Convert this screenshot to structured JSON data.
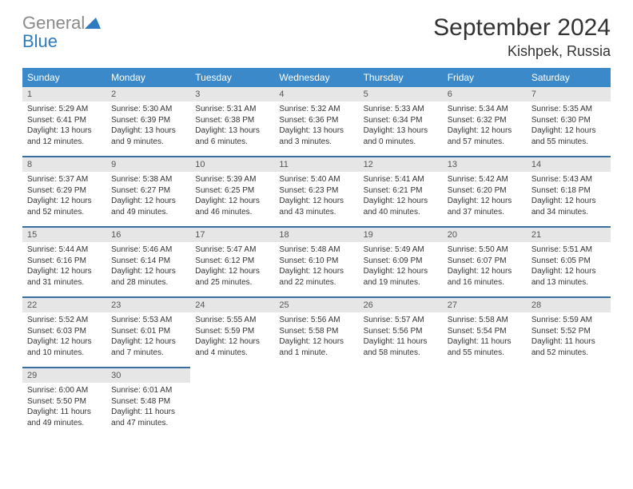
{
  "logo": {
    "word1": "General",
    "word2": "Blue"
  },
  "header": {
    "title": "September 2024",
    "location": "Kishpek, Russia"
  },
  "colors": {
    "header_bg": "#3b89c9",
    "header_text": "#ffffff",
    "row_border": "#3b6ea0",
    "daynum_bg": "#e6e6e6",
    "logo_gray": "#8a8a8a",
    "logo_blue": "#2d7bc0"
  },
  "weekdays": [
    "Sunday",
    "Monday",
    "Tuesday",
    "Wednesday",
    "Thursday",
    "Friday",
    "Saturday"
  ],
  "weeks": [
    [
      {
        "n": "1",
        "sr": "Sunrise: 5:29 AM",
        "ss": "Sunset: 6:41 PM",
        "d1": "Daylight: 13 hours",
        "d2": "and 12 minutes."
      },
      {
        "n": "2",
        "sr": "Sunrise: 5:30 AM",
        "ss": "Sunset: 6:39 PM",
        "d1": "Daylight: 13 hours",
        "d2": "and 9 minutes."
      },
      {
        "n": "3",
        "sr": "Sunrise: 5:31 AM",
        "ss": "Sunset: 6:38 PM",
        "d1": "Daylight: 13 hours",
        "d2": "and 6 minutes."
      },
      {
        "n": "4",
        "sr": "Sunrise: 5:32 AM",
        "ss": "Sunset: 6:36 PM",
        "d1": "Daylight: 13 hours",
        "d2": "and 3 minutes."
      },
      {
        "n": "5",
        "sr": "Sunrise: 5:33 AM",
        "ss": "Sunset: 6:34 PM",
        "d1": "Daylight: 13 hours",
        "d2": "and 0 minutes."
      },
      {
        "n": "6",
        "sr": "Sunrise: 5:34 AM",
        "ss": "Sunset: 6:32 PM",
        "d1": "Daylight: 12 hours",
        "d2": "and 57 minutes."
      },
      {
        "n": "7",
        "sr": "Sunrise: 5:35 AM",
        "ss": "Sunset: 6:30 PM",
        "d1": "Daylight: 12 hours",
        "d2": "and 55 minutes."
      }
    ],
    [
      {
        "n": "8",
        "sr": "Sunrise: 5:37 AM",
        "ss": "Sunset: 6:29 PM",
        "d1": "Daylight: 12 hours",
        "d2": "and 52 minutes."
      },
      {
        "n": "9",
        "sr": "Sunrise: 5:38 AM",
        "ss": "Sunset: 6:27 PM",
        "d1": "Daylight: 12 hours",
        "d2": "and 49 minutes."
      },
      {
        "n": "10",
        "sr": "Sunrise: 5:39 AM",
        "ss": "Sunset: 6:25 PM",
        "d1": "Daylight: 12 hours",
        "d2": "and 46 minutes."
      },
      {
        "n": "11",
        "sr": "Sunrise: 5:40 AM",
        "ss": "Sunset: 6:23 PM",
        "d1": "Daylight: 12 hours",
        "d2": "and 43 minutes."
      },
      {
        "n": "12",
        "sr": "Sunrise: 5:41 AM",
        "ss": "Sunset: 6:21 PM",
        "d1": "Daylight: 12 hours",
        "d2": "and 40 minutes."
      },
      {
        "n": "13",
        "sr": "Sunrise: 5:42 AM",
        "ss": "Sunset: 6:20 PM",
        "d1": "Daylight: 12 hours",
        "d2": "and 37 minutes."
      },
      {
        "n": "14",
        "sr": "Sunrise: 5:43 AM",
        "ss": "Sunset: 6:18 PM",
        "d1": "Daylight: 12 hours",
        "d2": "and 34 minutes."
      }
    ],
    [
      {
        "n": "15",
        "sr": "Sunrise: 5:44 AM",
        "ss": "Sunset: 6:16 PM",
        "d1": "Daylight: 12 hours",
        "d2": "and 31 minutes."
      },
      {
        "n": "16",
        "sr": "Sunrise: 5:46 AM",
        "ss": "Sunset: 6:14 PM",
        "d1": "Daylight: 12 hours",
        "d2": "and 28 minutes."
      },
      {
        "n": "17",
        "sr": "Sunrise: 5:47 AM",
        "ss": "Sunset: 6:12 PM",
        "d1": "Daylight: 12 hours",
        "d2": "and 25 minutes."
      },
      {
        "n": "18",
        "sr": "Sunrise: 5:48 AM",
        "ss": "Sunset: 6:10 PM",
        "d1": "Daylight: 12 hours",
        "d2": "and 22 minutes."
      },
      {
        "n": "19",
        "sr": "Sunrise: 5:49 AM",
        "ss": "Sunset: 6:09 PM",
        "d1": "Daylight: 12 hours",
        "d2": "and 19 minutes."
      },
      {
        "n": "20",
        "sr": "Sunrise: 5:50 AM",
        "ss": "Sunset: 6:07 PM",
        "d1": "Daylight: 12 hours",
        "d2": "and 16 minutes."
      },
      {
        "n": "21",
        "sr": "Sunrise: 5:51 AM",
        "ss": "Sunset: 6:05 PM",
        "d1": "Daylight: 12 hours",
        "d2": "and 13 minutes."
      }
    ],
    [
      {
        "n": "22",
        "sr": "Sunrise: 5:52 AM",
        "ss": "Sunset: 6:03 PM",
        "d1": "Daylight: 12 hours",
        "d2": "and 10 minutes."
      },
      {
        "n": "23",
        "sr": "Sunrise: 5:53 AM",
        "ss": "Sunset: 6:01 PM",
        "d1": "Daylight: 12 hours",
        "d2": "and 7 minutes."
      },
      {
        "n": "24",
        "sr": "Sunrise: 5:55 AM",
        "ss": "Sunset: 5:59 PM",
        "d1": "Daylight: 12 hours",
        "d2": "and 4 minutes."
      },
      {
        "n": "25",
        "sr": "Sunrise: 5:56 AM",
        "ss": "Sunset: 5:58 PM",
        "d1": "Daylight: 12 hours",
        "d2": "and 1 minute."
      },
      {
        "n": "26",
        "sr": "Sunrise: 5:57 AM",
        "ss": "Sunset: 5:56 PM",
        "d1": "Daylight: 11 hours",
        "d2": "and 58 minutes."
      },
      {
        "n": "27",
        "sr": "Sunrise: 5:58 AM",
        "ss": "Sunset: 5:54 PM",
        "d1": "Daylight: 11 hours",
        "d2": "and 55 minutes."
      },
      {
        "n": "28",
        "sr": "Sunrise: 5:59 AM",
        "ss": "Sunset: 5:52 PM",
        "d1": "Daylight: 11 hours",
        "d2": "and 52 minutes."
      }
    ],
    [
      {
        "n": "29",
        "sr": "Sunrise: 6:00 AM",
        "ss": "Sunset: 5:50 PM",
        "d1": "Daylight: 11 hours",
        "d2": "and 49 minutes."
      },
      {
        "n": "30",
        "sr": "Sunrise: 6:01 AM",
        "ss": "Sunset: 5:48 PM",
        "d1": "Daylight: 11 hours",
        "d2": "and 47 minutes."
      },
      null,
      null,
      null,
      null,
      null
    ]
  ]
}
